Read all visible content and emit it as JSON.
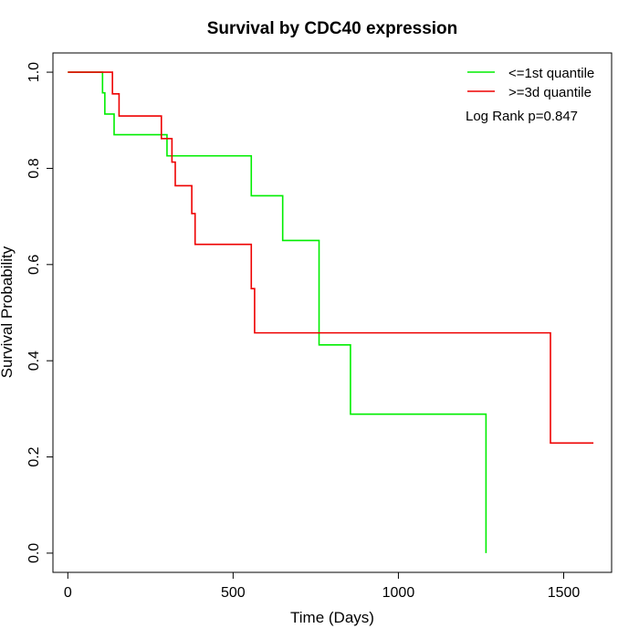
{
  "chart_data": {
    "type": "line",
    "title": "Survival by CDC40 expression",
    "xlabel": "Time (Days)",
    "ylabel": "Survival Probability",
    "xlim": [
      -45,
      1645
    ],
    "ylim": [
      -0.04,
      1.04
    ],
    "x_ticks": [
      0,
      500,
      1000,
      1500
    ],
    "x_tick_labels": [
      "0",
      "500",
      "1000",
      "1500"
    ],
    "y_ticks": [
      0.0,
      0.2,
      0.4,
      0.6,
      0.8,
      1.0
    ],
    "y_tick_labels": [
      "0.0",
      "0.2",
      "0.4",
      "0.6",
      "0.8",
      "1.0"
    ],
    "grid": false,
    "legend_position": "top-right",
    "annotation": "Log Rank p=0.847",
    "series": [
      {
        "name": "<=1st quantile",
        "color": "#00ee00",
        "step_x": [
          0,
          105,
          112,
          140,
          300,
          555,
          650,
          760,
          855,
          1265,
          1265
        ],
        "step_y": [
          1.0,
          0.957,
          0.913,
          0.87,
          0.826,
          0.743,
          0.65,
          0.433,
          0.289,
          0.289,
          0.0
        ]
      },
      {
        "name": ">=3d quantile",
        "color": "#ee0000",
        "step_x": [
          0,
          135,
          155,
          283,
          315,
          325,
          375,
          385,
          555,
          565,
          1460,
          1590
        ],
        "step_y": [
          1.0,
          0.955,
          0.909,
          0.862,
          0.813,
          0.764,
          0.706,
          0.642,
          0.55,
          0.458,
          0.229,
          0.229
        ]
      }
    ]
  }
}
